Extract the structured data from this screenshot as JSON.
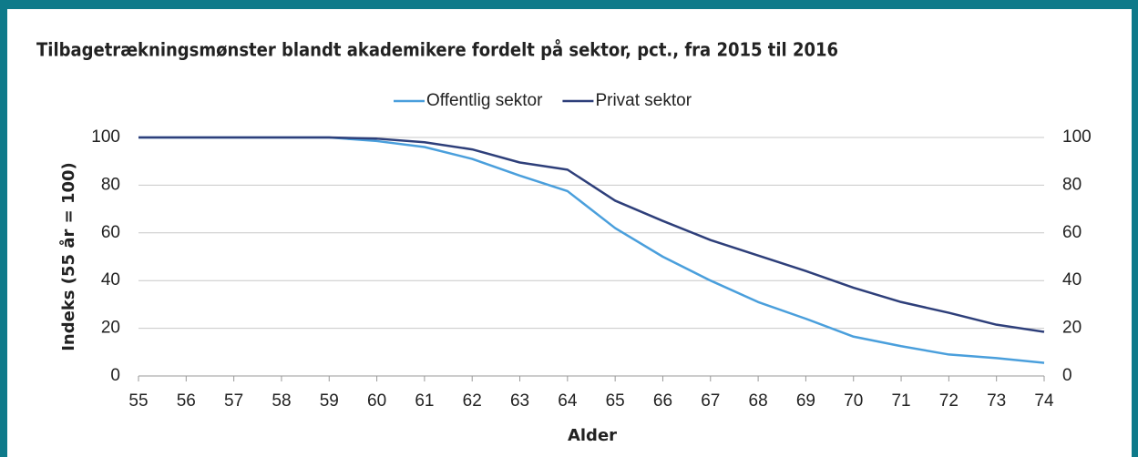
{
  "chart_data": {
    "type": "line",
    "title": "Tilbagetrækningsmønster blandt akademikere fordelt på sektor, pct., fra 2015 til 2016",
    "xlabel": "Alder",
    "ylabel": "Indeks (55 år = 100)",
    "x": [
      55,
      56,
      57,
      58,
      59,
      60,
      61,
      62,
      63,
      64,
      65,
      66,
      67,
      68,
      69,
      70,
      71,
      72,
      73,
      74
    ],
    "series": [
      {
        "name": "Offentlig sektor",
        "color": "#4a9fdc",
        "values": [
          100,
          100,
          100,
          100,
          100,
          98.5,
          96,
          91,
          84,
          77.5,
          62,
          50,
          40,
          31,
          24,
          16.5,
          12.5,
          9,
          7.5,
          5.5
        ]
      },
      {
        "name": "Privat sektor",
        "color": "#2e3f7a",
        "values": [
          100,
          100,
          100,
          100,
          100,
          99.5,
          98,
          95,
          89.5,
          86.5,
          73.5,
          65,
          57,
          50.5,
          44,
          37,
          31,
          26.5,
          21.5,
          18.5
        ]
      }
    ],
    "xlim": [
      55,
      74
    ],
    "xticks": [
      55,
      56,
      57,
      58,
      59,
      60,
      61,
      62,
      63,
      64,
      65,
      66,
      67,
      68,
      69,
      70,
      71,
      72,
      73,
      74
    ],
    "ylim": [
      0,
      100
    ],
    "yticks": [
      0,
      20,
      40,
      60,
      80,
      100
    ],
    "y2lim": [
      0,
      100
    ],
    "y2ticks": [
      0,
      20,
      40,
      60,
      80,
      100
    ],
    "grid": true,
    "legend": "top"
  }
}
